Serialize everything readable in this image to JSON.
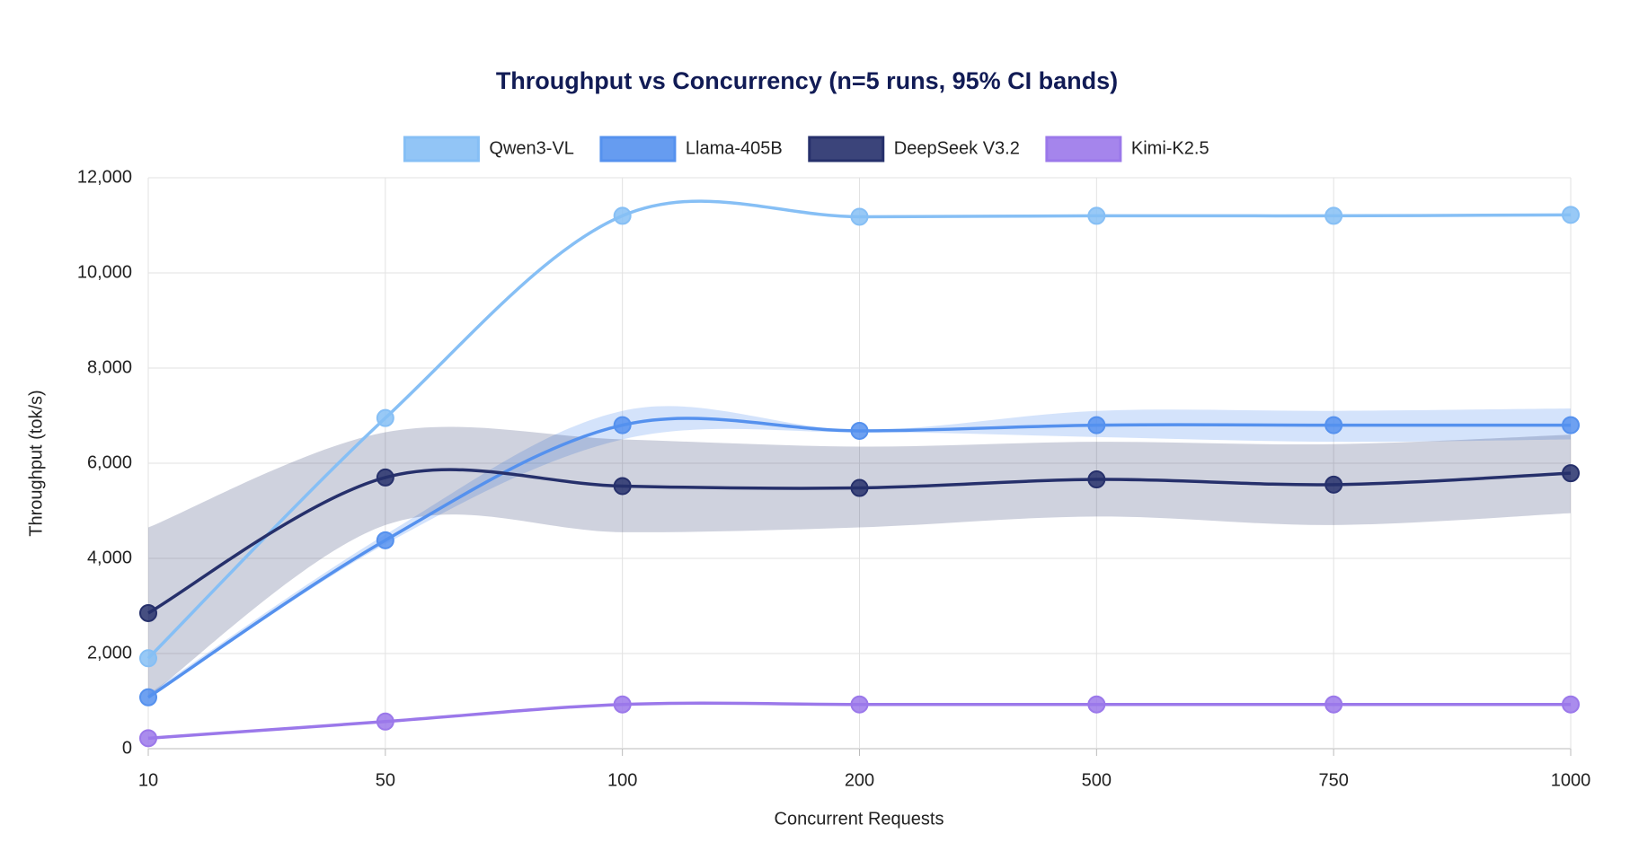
{
  "chart_data": {
    "type": "line",
    "title": "Throughput vs Concurrency (n=5 runs, 95% CI bands)",
    "x_label": "Concurrent Requests",
    "y_label": "Throughput (tok/s)",
    "categories": [
      "10",
      "50",
      "100",
      "200",
      "500",
      "750",
      "1000"
    ],
    "ylim": [
      0,
      12000
    ],
    "yticks": [
      0,
      {
        "value": 2000,
        "label": "2,000"
      },
      {
        "value": 4000,
        "label": "4,000"
      },
      {
        "value": 6000,
        "label": "6,000"
      },
      {
        "value": 8000,
        "label": "8,000"
      },
      {
        "value": 10000,
        "label": "10,000"
      },
      {
        "value": 12000,
        "label": "12,000"
      }
    ],
    "grid": true,
    "legend": "top",
    "series": [
      {
        "name": "Qwen3-VL",
        "color": "#86bff5",
        "values": [
          1900,
          6950,
          11200,
          11180,
          11200,
          11200,
          11220
        ]
      },
      {
        "name": "Llama-405B",
        "color": "#5591ee",
        "values": [
          1080,
          4380,
          6800,
          6680,
          6800,
          6800,
          6800
        ],
        "band": {
          "upper": [
            1150,
            4500,
            7100,
            6700,
            7100,
            7100,
            7150
          ],
          "lower": [
            1050,
            4300,
            6500,
            6650,
            6550,
            6450,
            6500
          ]
        }
      },
      {
        "name": "DeepSeek V3.2",
        "color": "#26306b",
        "values": [
          2850,
          5700,
          5520,
          5480,
          5660,
          5550,
          5790
        ],
        "band": {
          "upper": [
            4650,
            6650,
            6500,
            6350,
            6450,
            6400,
            6600
          ],
          "lower": [
            1100,
            4700,
            4550,
            4650,
            4880,
            4700,
            4950
          ]
        }
      },
      {
        "name": "Kimi-K2.5",
        "color": "#9b78ea",
        "values": [
          220,
          570,
          930,
          930,
          930,
          930,
          930
        ]
      }
    ]
  }
}
